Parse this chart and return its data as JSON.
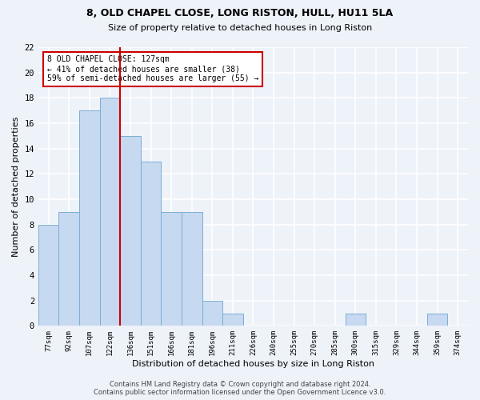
{
  "title_line1": "8, OLD CHAPEL CLOSE, LONG RISTON, HULL, HU11 5LA",
  "title_line2": "Size of property relative to detached houses in Long Riston",
  "xlabel": "Distribution of detached houses by size in Long Riston",
  "ylabel": "Number of detached properties",
  "categories": [
    "77sqm",
    "92sqm",
    "107sqm",
    "122sqm",
    "136sqm",
    "151sqm",
    "166sqm",
    "181sqm",
    "196sqm",
    "211sqm",
    "226sqm",
    "240sqm",
    "255sqm",
    "270sqm",
    "285sqm",
    "300sqm",
    "315sqm",
    "329sqm",
    "344sqm",
    "359sqm",
    "374sqm"
  ],
  "values": [
    8,
    9,
    17,
    18,
    15,
    13,
    9,
    9,
    2,
    1,
    0,
    0,
    0,
    0,
    0,
    1,
    0,
    0,
    0,
    1,
    0
  ],
  "bar_color": "#c6d9f0",
  "bar_edge_color": "#7bafd4",
  "vline_x": 3.5,
  "annotation_text": "8 OLD CHAPEL CLOSE: 127sqm\n← 41% of detached houses are smaller (38)\n59% of semi-detached houses are larger (55) →",
  "annotation_box_color": "#ffffff",
  "annotation_box_edge_color": "#cc0000",
  "ylim": [
    0,
    22
  ],
  "yticks": [
    0,
    2,
    4,
    6,
    8,
    10,
    12,
    14,
    16,
    18,
    20,
    22
  ],
  "footer_text": "Contains HM Land Registry data © Crown copyright and database right 2024.\nContains public sector information licensed under the Open Government Licence v3.0.",
  "background_color": "#eef2f9",
  "grid_color": "#ffffff",
  "vline_color": "#cc0000"
}
